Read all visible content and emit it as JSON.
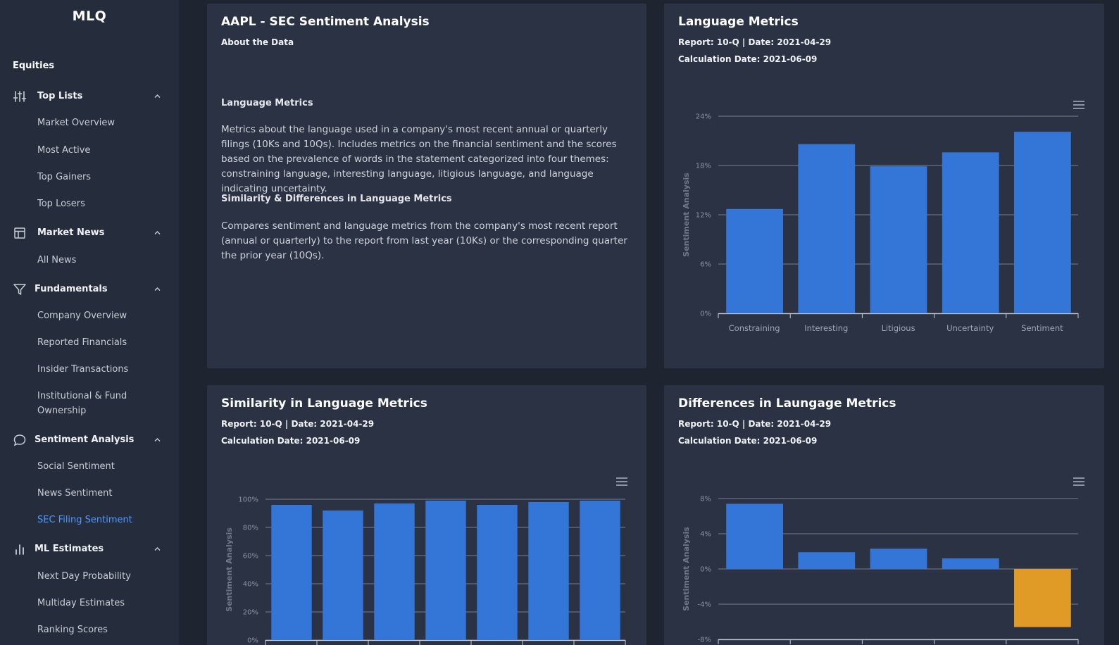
{
  "app": {
    "logo": "MLQ"
  },
  "sidebar": {
    "section": "Equities",
    "groups": [
      {
        "label": "Top Lists",
        "icon": "sliders-icon",
        "items": [
          "Market Overview",
          "Most Active",
          "Top Gainers",
          "Top Losers"
        ]
      },
      {
        "label": "Market News",
        "icon": "newspaper-icon",
        "items": [
          "All News"
        ]
      },
      {
        "label": "Fundamentals",
        "icon": "filter-icon",
        "items": [
          "Company Overview",
          "Reported Financials",
          "Insider Transactions",
          "Institutional & Fund Ownership"
        ]
      },
      {
        "label": "Sentiment Analysis",
        "icon": "chat-bubble-icon",
        "items": [
          "Social Sentiment",
          "News Sentiment",
          "SEC Filing Sentiment"
        ]
      },
      {
        "label": "ML Estimates",
        "icon": "bar-chart-icon",
        "items": [
          "Next Day Probability",
          "Multiday Estimates",
          "Ranking Scores"
        ]
      }
    ],
    "active_item": "SEC Filing Sentiment"
  },
  "about": {
    "title": "AAPL - SEC Sentiment Analysis",
    "subtitle": "About the Data",
    "h1": "Language Metrics",
    "p1": "Metrics about the language used in a company's most recent annual or quarterly filings (10Ks and 10Qs). Includes metrics on the financial sentiment and the scores based on the prevalence of words in the statement categorized into four themes: constraining language, interesting language, litigious language, and language indicating uncertainty.",
    "h2": "Similarity & Differences in Language Metrics",
    "p2": "Compares sentiment and language metrics from the company's most recent report (annual or quarterly) to the report from last year (10Ks) or the corresponding quarter the prior year (10Qs)."
  },
  "lang_card": {
    "title": "Language Metrics",
    "report": "Report: 10-Q | Date: 2021-04-29",
    "calc": "Calculation Date: 2021-06-09"
  },
  "sim_card": {
    "title": "Similarity in Language Metrics",
    "report": "Report: 10-Q | Date: 2021-04-29",
    "calc": "Calculation Date: 2021-06-09"
  },
  "diff_card": {
    "title": "Differences in Laungage Metrics",
    "report": "Report: 10-Q | Date: 2021-04-29",
    "calc": "Calculation Date: 2021-06-09"
  },
  "colors": {
    "bar": "#3476d8",
    "negative": "#e09b26",
    "grid": "#8a93a5"
  },
  "chart_data": [
    {
      "type": "bar",
      "title": "Language Metrics",
      "ylabel": "Sentiment Analysis",
      "categories": [
        "Constraining",
        "Interesting",
        "Litigious",
        "Uncertainty",
        "Sentiment"
      ],
      "values": [
        12.7,
        20.6,
        17.9,
        19.6,
        22.1
      ],
      "ylim": [
        0,
        24
      ],
      "yticks": [
        0,
        6,
        12,
        18,
        24
      ],
      "ytick_labels": [
        "0%",
        "6%",
        "12%",
        "18%",
        "24%"
      ]
    },
    {
      "type": "bar",
      "title": "Similarity in Language Metrics",
      "ylabel": "Sentiment Analysis",
      "categories": [
        "",
        "",
        "",
        "",
        "",
        "",
        ""
      ],
      "values": [
        96,
        92,
        97,
        99,
        96,
        98,
        99
      ],
      "ylim": [
        0,
        100
      ],
      "yticks": [
        0,
        20,
        40,
        60,
        80,
        100
      ],
      "ytick_labels": [
        "0%",
        "20%",
        "40%",
        "60%",
        "80%",
        "100%"
      ]
    },
    {
      "type": "bar",
      "title": "Differences in Laungage Metrics",
      "ylabel": "Sentiment Analysis",
      "categories": [
        "",
        "",
        "",
        "",
        ""
      ],
      "values": [
        7.4,
        1.9,
        2.3,
        1.2,
        -6.6
      ],
      "ylim": [
        -8,
        8
      ],
      "yticks": [
        -8,
        -4,
        0,
        4,
        8
      ],
      "ytick_labels": [
        "-8%",
        "-4%",
        "0%",
        "4%",
        "8%"
      ]
    }
  ]
}
